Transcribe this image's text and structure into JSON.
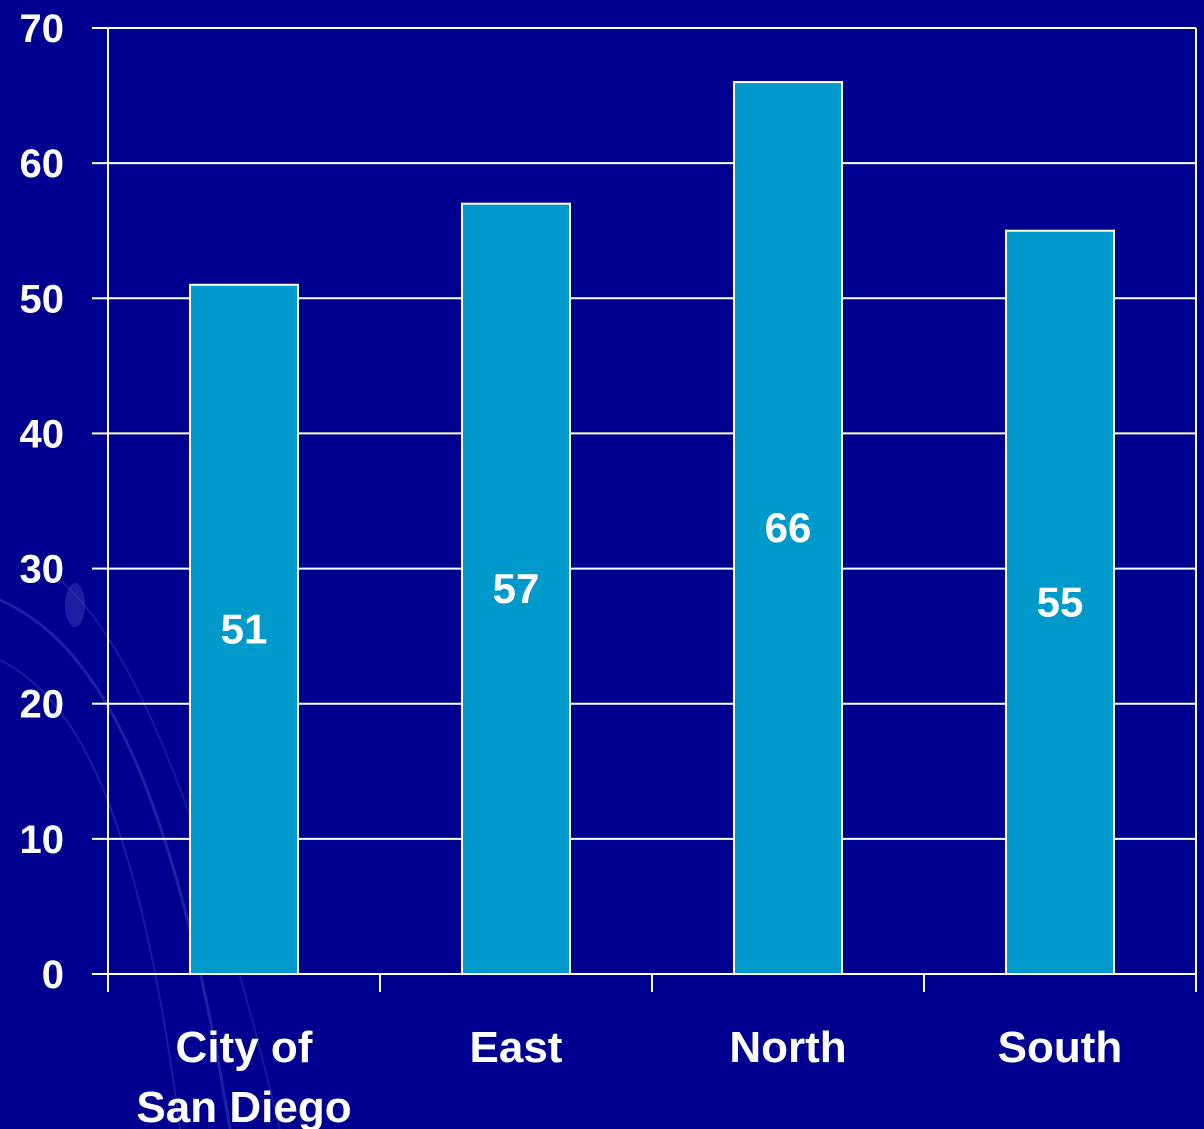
{
  "chart_data": {
    "type": "bar",
    "title": "",
    "xlabel": "",
    "ylabel": "",
    "categories": [
      [
        "City of",
        "San Diego"
      ],
      [
        "East"
      ],
      [
        "North"
      ],
      [
        "South"
      ]
    ],
    "values": [
      51,
      57,
      66,
      55
    ],
    "data_labels": [
      "51",
      "57",
      "66",
      "55"
    ],
    "y_ticks": [
      "0",
      "10",
      "20",
      "30",
      "40",
      "50",
      "60",
      "70"
    ],
    "ylim": [
      0,
      70
    ],
    "grid": true,
    "legend": "none",
    "colors": {
      "background": "#000090",
      "bar_fill": "#0099CC",
      "bar_stroke": "#FFFFFF",
      "grid": "#FFFFFF",
      "text": "#FFFFFF"
    }
  }
}
